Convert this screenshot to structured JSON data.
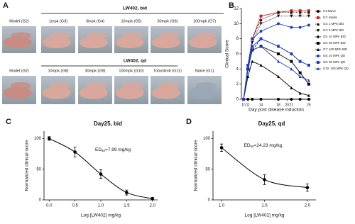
{
  "panel_labels": [
    "A",
    "B",
    "C",
    "D"
  ],
  "photo_panel": {
    "rows": [
      {
        "header": "LW402, bid",
        "captions": [
          "Model (G2)",
          "1mpk (G3)",
          "3mpk (G4)",
          "10mpk (G5)",
          "30mpk (G6)",
          "100mpk (G7)"
        ]
      },
      {
        "header": "LW402, qd",
        "captions": [
          "Model (G2)",
          "10mpk (G8)",
          "30mpk (G9)",
          "100mpk (G10)",
          "Tofacitinib (G11)",
          "Naive (G1)"
        ]
      }
    ]
  },
  "chart_data": [
    {
      "type": "line",
      "ylabel": "Clinical Score",
      "xlabel": "Day post disease induction",
      "x": [
        10,
        11,
        12,
        14,
        18,
        21,
        23,
        25
      ],
      "xlim": [
        9.5,
        25.5
      ],
      "xticks": [
        10,
        11,
        14,
        18,
        20,
        21,
        25
      ],
      "ylim": [
        0,
        12
      ],
      "yticks": [
        0,
        2,
        4,
        6,
        8,
        10,
        12
      ],
      "series": [
        {
          "name": "G1:Naive",
          "color": "#000000",
          "marker": "circle",
          "dash": "solid",
          "values": [
            0,
            0,
            0,
            0,
            0,
            0,
            0,
            0
          ]
        },
        {
          "name": "G2: Model",
          "color": "#d62020",
          "marker": "square",
          "dash": "solid",
          "values": [
            0,
            4,
            8,
            11,
            11.5,
            11.7,
            11.7,
            11.7
          ]
        },
        {
          "name": "G3: 1 MPK BID",
          "color": "#000000",
          "marker": "triangle",
          "dash": "dotted",
          "values": [
            0,
            4,
            8,
            10.5,
            11.5,
            11.5,
            11.5,
            11.5
          ]
        },
        {
          "name": "G4: 3 MPK BID",
          "color": "#000000",
          "marker": "triangle-down",
          "dash": "dotted",
          "values": [
            0,
            4,
            7.5,
            10,
            11,
            11,
            11,
            11
          ]
        },
        {
          "name": "G5: 10 MPK BID",
          "color": "#000000",
          "marker": "diamond",
          "dash": "dashed",
          "values": [
            0,
            4,
            6.5,
            8,
            7,
            6,
            5,
            4.5
          ]
        },
        {
          "name": "G6: 30 MPK BID",
          "color": "#000000",
          "marker": "square",
          "dash": "solid",
          "values": [
            0,
            4,
            6.5,
            7,
            6,
            5,
            3.5,
            2
          ]
        },
        {
          "name": "G7: 100 MPK BID",
          "color": "#000000",
          "marker": "triangle",
          "dash": "solid",
          "values": [
            0,
            3,
            5,
            4.5,
            3,
            1.5,
            0.8,
            0.5
          ]
        },
        {
          "name": "G8: 10 MPK QD",
          "color": "#1f3fbf",
          "marker": "circle",
          "dash": "solid",
          "values": [
            0,
            4.5,
            8,
            9,
            10,
            9.5,
            9.5,
            9.8
          ]
        },
        {
          "name": "G9: 30 MPK QD",
          "color": "#1f3fbf",
          "marker": "square",
          "dash": "solid",
          "values": [
            0,
            4.5,
            7,
            8,
            7,
            6,
            5,
            4.5
          ]
        },
        {
          "name": "G10: 100 MPK QD",
          "color": "#1f3fbf",
          "marker": "triangle",
          "dash": "solid",
          "values": [
            0,
            4,
            6.5,
            7,
            5,
            4,
            3,
            2.5
          ]
        }
      ]
    },
    {
      "type": "scatter",
      "title": "Day25, bid",
      "ylabel": "Normalized clinical score",
      "xlabel": "Log [LW402] mg/kg",
      "annotation": {
        "text": "ED",
        "sub": "50",
        "rest": "=7.99 mg/kg"
      },
      "x": [
        0,
        0.5,
        1.0,
        1.5,
        2.0
      ],
      "values": [
        100,
        78,
        42,
        12,
        2
      ],
      "errors": [
        3,
        8,
        7,
        4,
        2
      ],
      "color": "#000000",
      "xlim": [
        -0.1,
        2.1
      ],
      "xticks": [
        {
          "value": 0,
          "label": "0.0"
        },
        {
          "value": 0.5,
          "label": "0.5"
        },
        {
          "value": 1,
          "label": "1.0"
        },
        {
          "value": 1.5,
          "label": "1.5"
        },
        {
          "value": 2,
          "label": "2.0"
        }
      ],
      "ylim": [
        0,
        112
      ],
      "yticks": [
        0,
        50,
        100
      ]
    },
    {
      "type": "scatter",
      "title": "Day25, qd",
      "ylabel": "Normalized clinical score",
      "xlabel": "Log [LW402] mg/kg",
      "annotation": {
        "text": "ED",
        "sub": "50",
        "rest": "=24.23 mg/kg"
      },
      "x": [
        1.0,
        1.5,
        2.0
      ],
      "values": [
        85,
        33,
        20
      ],
      "errors": [
        6,
        8,
        6
      ],
      "color": "#000000",
      "xlim": [
        0.9,
        2.1
      ],
      "xticks": [
        {
          "value": 1,
          "label": "1.0"
        },
        {
          "value": 1.5,
          "label": "1.5"
        },
        {
          "value": 2,
          "label": "2.0"
        }
      ],
      "ylim": [
        0,
        112
      ],
      "yticks": [
        0,
        50,
        100
      ]
    }
  ]
}
